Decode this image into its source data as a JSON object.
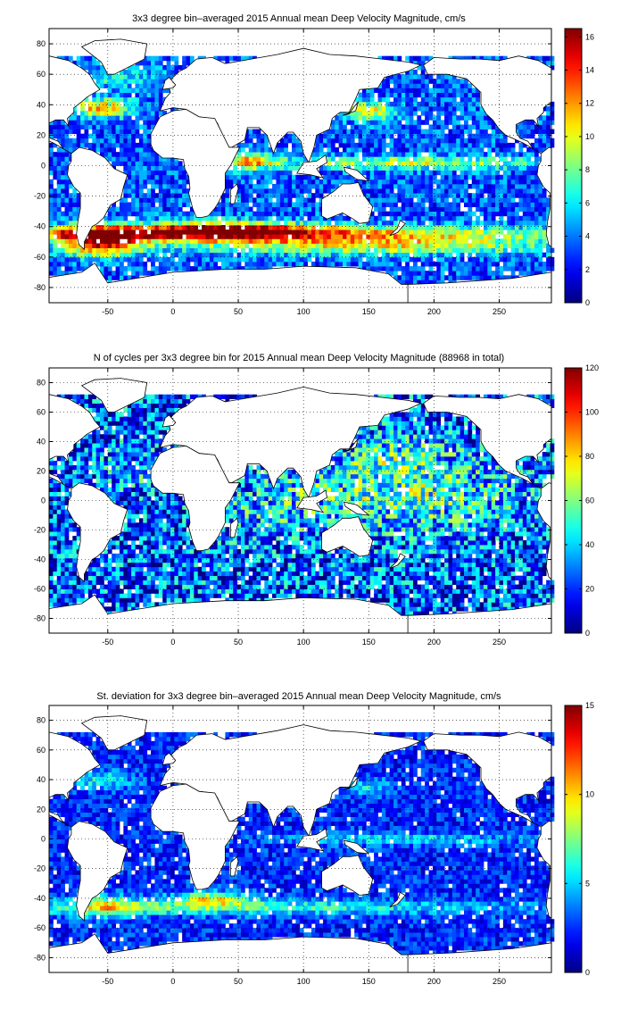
{
  "chart_data": [
    {
      "type": "heatmap",
      "title": "3x3 degree bin–averaged 2015 Annual mean Deep Velocity Magnitude, cm/s",
      "x_ticks": [
        -50,
        0,
        50,
        100,
        150,
        200,
        250
      ],
      "y_ticks": [
        -80,
        -60,
        -40,
        -20,
        0,
        20,
        40,
        60,
        80
      ],
      "xlim": [
        -95,
        290
      ],
      "ylim": [
        -90,
        90
      ],
      "bin_size_deg": 3,
      "grid": true,
      "colorbar": {
        "min": 0,
        "max": 16.5,
        "ticks": [
          0,
          2,
          4,
          6,
          8,
          10,
          12,
          14,
          16
        ],
        "placement": "right"
      },
      "field": {
        "base": 3.2,
        "max": 16.5,
        "noise": 2.2,
        "features": [
          {
            "lon": 20,
            "lat": -44,
            "dlon": 260,
            "dlat": 5,
            "amp": 9.5
          },
          {
            "lon": -55,
            "lat": -50,
            "dlon": 30,
            "dlat": 9,
            "amp": 11
          },
          {
            "lon": 40,
            "lat": -42,
            "dlon": 60,
            "dlat": 6,
            "amp": 8
          },
          {
            "lon": 150,
            "lat": -52,
            "dlon": 150,
            "dlat": 6,
            "amp": 7
          },
          {
            "lon": 185,
            "lat": 2,
            "dlon": 110,
            "dlat": 4,
            "amp": 6
          },
          {
            "lon": 60,
            "lat": 3,
            "dlon": 20,
            "dlat": 6,
            "amp": 7
          },
          {
            "lon": -55,
            "lat": 38,
            "dlon": 25,
            "dlat": 6,
            "amp": 8
          },
          {
            "lon": 150,
            "lat": 36,
            "dlon": 20,
            "dlat": 6,
            "amp": 7
          },
          {
            "lon": -50,
            "lat": 58,
            "dlon": 40,
            "dlat": 8,
            "amp": 3
          }
        ]
      }
    },
    {
      "type": "heatmap",
      "title": "N of cycles per 3x3 degree bin for 2015 Annual mean Deep Velocity Magnitude (88968 in total)",
      "x_ticks": [
        -50,
        0,
        50,
        100,
        150,
        200,
        250
      ],
      "y_ticks": [
        -80,
        -60,
        -40,
        -20,
        0,
        20,
        40,
        60,
        80
      ],
      "xlim": [
        -95,
        290
      ],
      "ylim": [
        -90,
        90
      ],
      "bin_size_deg": 3,
      "grid": true,
      "colorbar": {
        "min": 0,
        "max": 120,
        "ticks": [
          0,
          20,
          40,
          60,
          80,
          100,
          120
        ],
        "placement": "right"
      },
      "field": {
        "base": 22,
        "max": 120,
        "noise": 30,
        "features": [
          {
            "lon": 175,
            "lat": 5,
            "dlon": 90,
            "dlat": 25,
            "amp": 28
          },
          {
            "lon": 170,
            "lat": 30,
            "dlon": 40,
            "dlat": 15,
            "amp": 18
          },
          {
            "lon": 70,
            "lat": -10,
            "dlon": 40,
            "dlat": 20,
            "amp": 12
          },
          {
            "lon": -30,
            "lat": 20,
            "dlon": 30,
            "dlat": 15,
            "amp": 10
          }
        ]
      }
    },
    {
      "type": "heatmap",
      "title": "St. deviation for 3x3 degree bin–averaged 2015 Annual mean Deep Velocity Magnitude, cm/s",
      "x_ticks": [
        -50,
        0,
        50,
        100,
        150,
        200,
        250
      ],
      "y_ticks": [
        -80,
        -60,
        -40,
        -20,
        0,
        20,
        40,
        60,
        80
      ],
      "xlim": [
        -95,
        290
      ],
      "ylim": [
        -90,
        90
      ],
      "bin_size_deg": 3,
      "grid": true,
      "colorbar": {
        "min": 0,
        "max": 15,
        "ticks": [
          0,
          5,
          10,
          15
        ],
        "placement": "right"
      },
      "field": {
        "base": 2.2,
        "max": 15,
        "noise": 1.6,
        "features": [
          {
            "lon": 20,
            "lat": -46,
            "dlon": 240,
            "dlat": 5,
            "amp": 4.5
          },
          {
            "lon": 30,
            "lat": -40,
            "dlon": 30,
            "dlat": 5,
            "amp": 6
          },
          {
            "lon": -50,
            "lat": -45,
            "dlon": 25,
            "dlat": 8,
            "amp": 4
          },
          {
            "lon": 180,
            "lat": 0,
            "dlon": 100,
            "dlat": 4,
            "amp": 3
          },
          {
            "lon": -55,
            "lat": 40,
            "dlon": 25,
            "dlat": 6,
            "amp": 3.5
          },
          {
            "lon": 150,
            "lat": 35,
            "dlon": 20,
            "dlat": 6,
            "amp": 3
          }
        ]
      }
    }
  ]
}
